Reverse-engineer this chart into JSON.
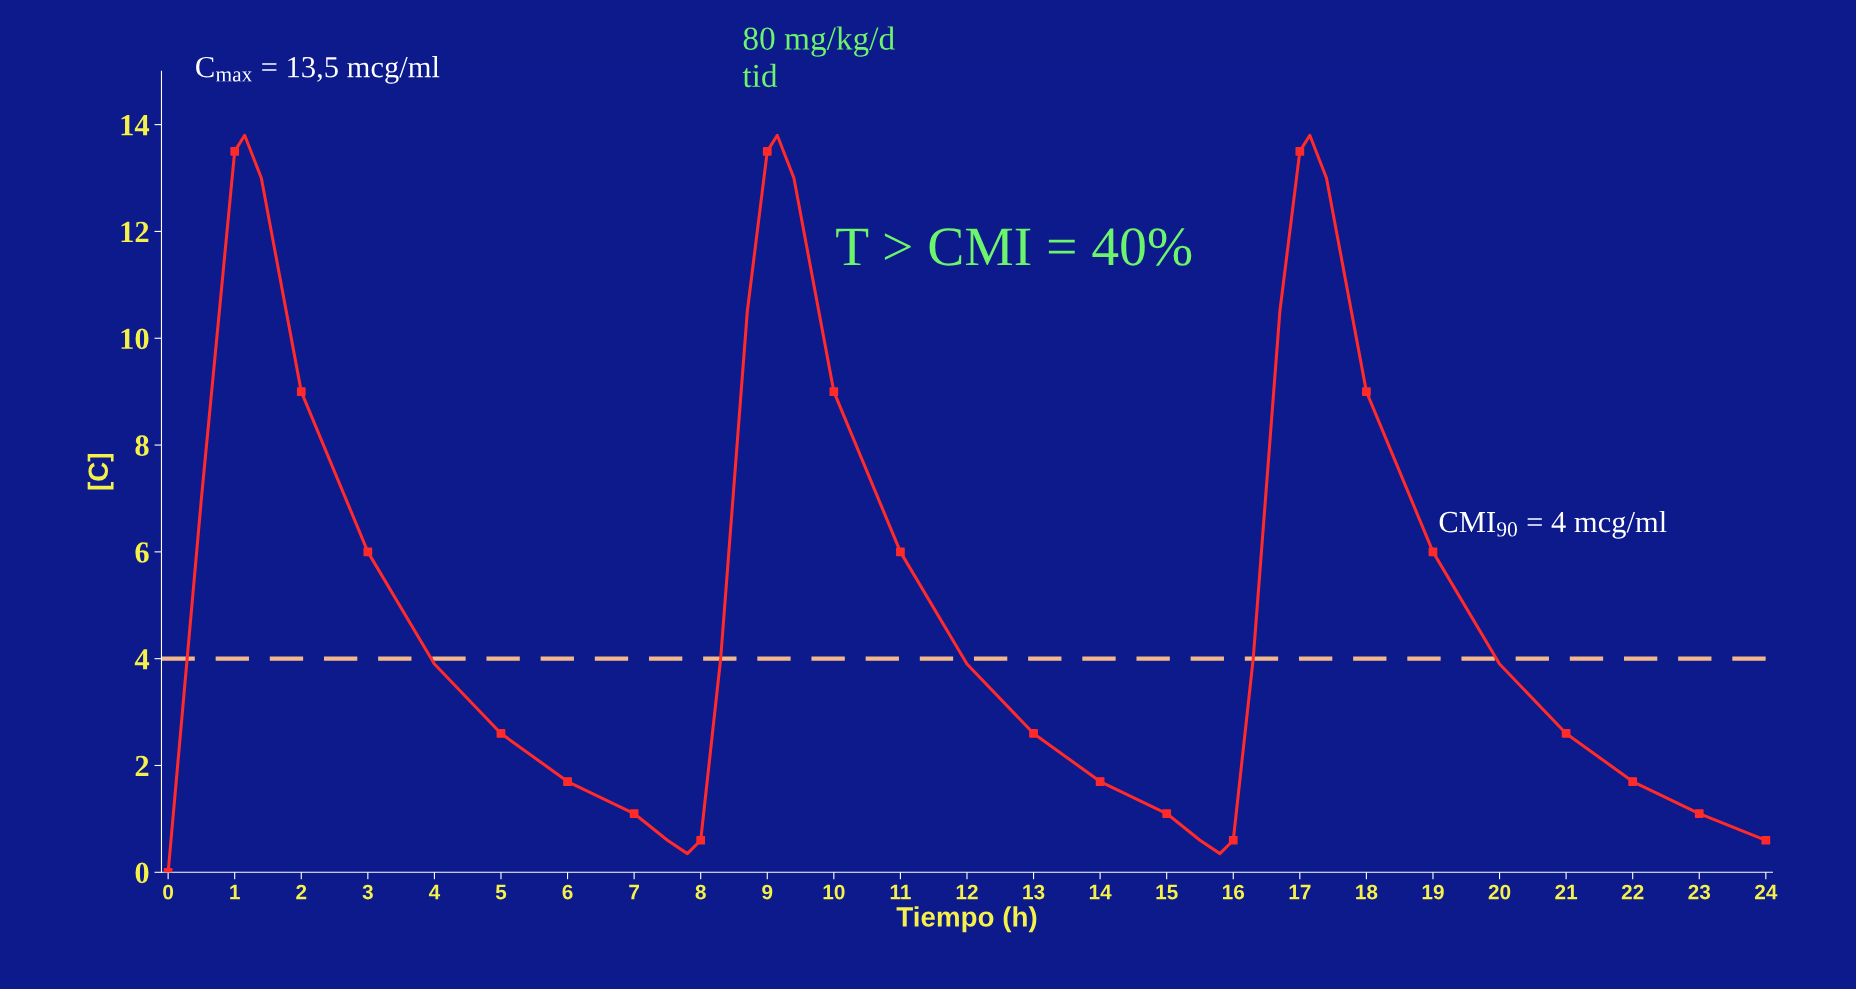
{
  "chart_data": {
    "type": "line",
    "xlabel": "Tiempo (h)",
    "ylabel": "[C]",
    "xlim": [
      -0.1,
      24.1
    ],
    "ylim": [
      0,
      15
    ],
    "xticks": [
      0,
      1,
      2,
      3,
      4,
      5,
      6,
      7,
      8,
      9,
      10,
      11,
      12,
      13,
      14,
      15,
      16,
      17,
      18,
      19,
      20,
      21,
      22,
      23,
      24
    ],
    "yticks": [
      0,
      2,
      4,
      6,
      8,
      10,
      12,
      14
    ],
    "grid": false,
    "legend": false,
    "series": [
      {
        "color": "#ff2a2a",
        "marker": "none",
        "line_style": "solid",
        "x": [
          0,
          0.5,
          1,
          1.15,
          1.4,
          2,
          3,
          4,
          5,
          6,
          7,
          7.5,
          7.8,
          8,
          8.3,
          8.7,
          9,
          9.15,
          9.4,
          10,
          11,
          12,
          13,
          14,
          15,
          15.5,
          15.8,
          16,
          16.3,
          16.7,
          17,
          17.15,
          17.4,
          18,
          19,
          20,
          21,
          22,
          23,
          24
        ],
        "values": [
          0,
          7,
          13.5,
          13.8,
          13,
          9,
          6,
          3.9,
          2.6,
          1.7,
          1.1,
          0.6,
          0.35,
          0.6,
          4,
          10.5,
          13.5,
          13.8,
          13,
          9,
          6,
          3.9,
          2.6,
          1.7,
          1.1,
          0.6,
          0.35,
          0.6,
          4,
          10.5,
          13.5,
          13.8,
          13,
          9,
          6,
          3.9,
          2.6,
          1.7,
          1.1,
          0.6
        ]
      },
      {
        "type": "scatter",
        "color": "#ff2a2a",
        "marker": "square",
        "x": [
          0,
          1,
          2,
          3,
          5,
          6,
          7,
          8,
          9,
          10,
          11,
          13,
          14,
          15,
          16,
          17,
          18,
          19,
          21,
          22,
          23,
          24
        ],
        "values": [
          0,
          13.5,
          9,
          6,
          2.6,
          1.7,
          1.1,
          0.6,
          13.5,
          9,
          6,
          2.6,
          1.7,
          1.1,
          0.6,
          13.5,
          9,
          6,
          2.6,
          1.7,
          1.1,
          0.6
        ]
      }
    ],
    "ref_lines": [
      {
        "axis": "y",
        "value": 4,
        "color": "#f2b88a",
        "line_style": "dashed"
      }
    ],
    "annotations": [
      "C$_{max}$ = 13,5 mcg/ml",
      "80 mg/kg/d\ntid",
      "T > CMI = 40%",
      "CMI$_{90}$ = 4 mcg/ml"
    ]
  }
}
